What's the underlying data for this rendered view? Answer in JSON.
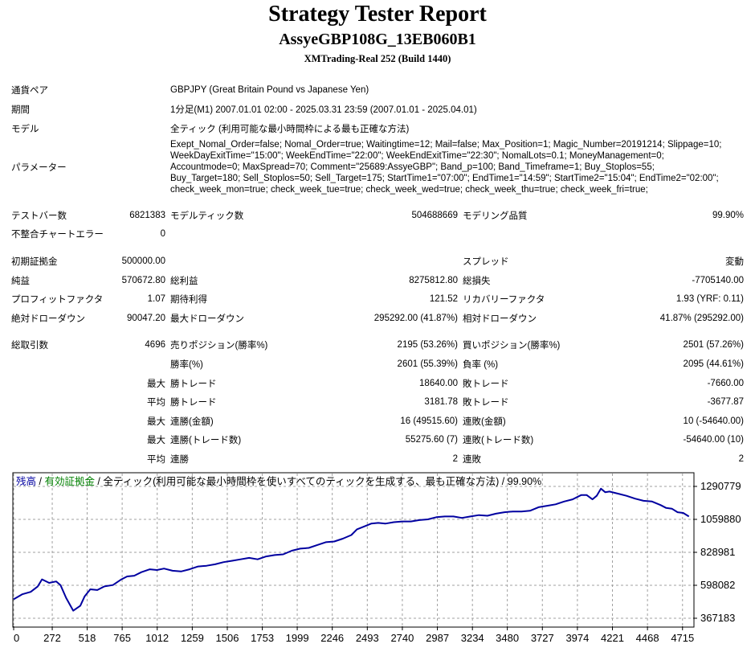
{
  "header": {
    "title": "Strategy Tester Report",
    "subtitle": "AssyeGBP108G_13EB060B1",
    "server": "XMTrading-Real 252 (Build 1440)"
  },
  "info": {
    "pair_label": "通貨ペア",
    "pair_value": "GBPJPY (Great Britain Pound vs Japanese Yen)",
    "period_label": "期間",
    "period_value": "1分足(M1) 2007.01.01 02:00 - 2025.03.31 23:59 (2007.01.01 - 2025.04.01)",
    "model_label": "モデル",
    "model_value": "全ティック (利用可能な最小時間枠による最も正確な方法)",
    "params_label": "パラメーター",
    "params_lines": [
      "Exept_Nomal_Order=false; Nomal_Order=true; Waitingtime=12; Mail=false; Max_Position=1; Magic_Number=20191214; Slippage=10;",
      "WeekDayExitTime=\"15:00\"; WeekEndTime=\"22:00\"; WeekEndExitTime=\"22:30\"; NomalLots=0.1; MoneyManagement=0;",
      "Accountmode=0; MaxSpread=70; Comment=\"25689:AssyeGBP\"; Band_p=100; Band_Timeframe=1; Buy_Stoplos=55;",
      "Buy_Target=180; Sell_Stoplos=50; Sell_Target=175; StartTime1=\"07:00\"; EndTime1=\"14:59\"; StartTime2=\"15:04\"; EndTime2=\"02:00\";",
      "check_week_mon=true; check_week_tue=true; check_week_wed=true; check_week_thu=true; check_week_fri=true;"
    ]
  },
  "stats": {
    "bars_label": "テストバー数",
    "bars_value": "6821383",
    "ticks_label": "モデルティック数",
    "ticks_value": "504688669",
    "quality_label": "モデリング品質",
    "quality_value": "99.90%",
    "mismatch_label": "不整合チャートエラー",
    "mismatch_value": "0",
    "deposit_label": "初期証拠金",
    "deposit_value": "500000.00",
    "spread_label": "スプレッド",
    "spread_value": "変動",
    "net_label": "純益",
    "net_value": "570672.80",
    "gross_profit_label": "総利益",
    "gross_profit_value": "8275812.80",
    "gross_loss_label": "総損失",
    "gross_loss_value": "-7705140.00",
    "pf_label": "プロフィットファクタ",
    "pf_value": "1.07",
    "expected_label": "期待利得",
    "expected_value": "121.52",
    "recovery_label": "リカバリーファクタ",
    "recovery_value": "1.93 (YRF: 0.11)",
    "abs_dd_label": "絶対ドローダウン",
    "abs_dd_value": "90047.20",
    "max_dd_label": "最大ドローダウン",
    "max_dd_value": "295292.00 (41.87%)",
    "rel_dd_label": "相対ドローダウン",
    "rel_dd_value": "41.87% (295292.00)",
    "total_trades_label": "総取引数",
    "total_trades_value": "4696",
    "short_label": "売りポジション(勝率%)",
    "short_value": "2195 (53.26%)",
    "long_label": "買いポジション(勝率%)",
    "long_value": "2501 (57.26%)",
    "win_rate_label": "勝率(%)",
    "win_rate_value": "2601 (55.39%)",
    "loss_rate_label": "負率 (%)",
    "loss_rate_value": "2095 (44.61%)",
    "max_label": "最大",
    "avg_label": "平均",
    "largest_win_label": "勝トレード",
    "largest_win_value": "18640.00",
    "largest_loss_label": "敗トレード",
    "largest_loss_value": "-7660.00",
    "avg_win_label": "勝トレード",
    "avg_win_value": "3181.78",
    "avg_loss_label": "敗トレード",
    "avg_loss_value": "-3677.87",
    "max_cons_wins_amt_label": "連勝(金額)",
    "max_cons_wins_amt_value": "16 (49515.60)",
    "max_cons_losses_amt_label": "連敗(金額)",
    "max_cons_losses_amt_value": "10 (-54640.00)",
    "max_cons_profit_label": "連勝(トレード数)",
    "max_cons_profit_value": "55275.60 (7)",
    "max_cons_loss_label": "連敗(トレード数)",
    "max_cons_loss_value": "-54640.00 (10)",
    "avg_cons_wins_label": "連勝",
    "avg_cons_wins_value": "2",
    "avg_cons_losses_label": "連敗",
    "avg_cons_losses_value": "2"
  },
  "chart_data": {
    "type": "line",
    "legend": {
      "balance": "残高",
      "sep1": " / ",
      "equity": "有効証拠金",
      "sep2": " / ",
      "rest": "全ティック(利用可能な最小時間枠を使いすべてのティックを生成する、最も正確な方法) / 99.90%"
    },
    "colors": {
      "balance": "#0000a0",
      "equity": "#008000",
      "line": "#0000a0",
      "grid": "#a0a0a0"
    },
    "grid": true,
    "ylim": [
      367183,
      1290779
    ],
    "y_ticks": [
      "1290779",
      "1059880",
      "828981",
      "598082",
      "367183"
    ],
    "x_ticks": [
      "0",
      "272",
      "518",
      "765",
      "1012",
      "1259",
      "1506",
      "1753",
      "1999",
      "2246",
      "2493",
      "2740",
      "2987",
      "3234",
      "3480",
      "3727",
      "3974",
      "4221",
      "4468",
      "4715"
    ],
    "x_tick_values": [
      0,
      272,
      518,
      765,
      1012,
      1259,
      1506,
      1753,
      1999,
      2246,
      2493,
      2740,
      2987,
      3234,
      3480,
      3727,
      3974,
      4221,
      4468,
      4715
    ],
    "series": [
      {
        "x": [
          0,
          60,
          120,
          170,
          200,
          250,
          300,
          330,
          370,
          420,
          470,
          500,
          540,
          590,
          640,
          700,
          760,
          800,
          850,
          900,
          960,
          1010,
          1060,
          1120,
          1180,
          1240,
          1300,
          1360,
          1420,
          1480,
          1540,
          1600,
          1660,
          1720,
          1780,
          1840,
          1900,
          1960,
          2020,
          2080,
          2140,
          2200,
          2260,
          2320,
          2380,
          2420,
          2470,
          2520,
          2570,
          2620,
          2680,
          2740,
          2800,
          2860,
          2920,
          2980,
          3040,
          3100,
          3160,
          3220,
          3280,
          3340,
          3400,
          3460,
          3520,
          3580,
          3640,
          3700,
          3760,
          3820,
          3880,
          3940,
          4000,
          4040,
          4080,
          4110,
          4140,
          4170,
          4200,
          4260,
          4320,
          4380,
          4440,
          4500,
          4560,
          4600,
          4640,
          4680,
          4720,
          4760
        ],
        "y": [
          500000,
          535000,
          552000,
          590000,
          640000,
          615000,
          625000,
          600000,
          510000,
          420000,
          455000,
          520000,
          570000,
          565000,
          590000,
          600000,
          640000,
          660000,
          665000,
          690000,
          710000,
          705000,
          715000,
          700000,
          695000,
          710000,
          730000,
          735000,
          745000,
          760000,
          770000,
          780000,
          790000,
          780000,
          800000,
          810000,
          815000,
          840000,
          855000,
          860000,
          880000,
          900000,
          905000,
          925000,
          950000,
          990000,
          1010000,
          1030000,
          1035000,
          1030000,
          1040000,
          1045000,
          1045000,
          1055000,
          1060000,
          1075000,
          1080000,
          1080000,
          1070000,
          1080000,
          1090000,
          1085000,
          1100000,
          1110000,
          1115000,
          1115000,
          1120000,
          1145000,
          1155000,
          1165000,
          1185000,
          1200000,
          1230000,
          1230000,
          1200000,
          1225000,
          1275000,
          1250000,
          1255000,
          1240000,
          1225000,
          1205000,
          1190000,
          1185000,
          1160000,
          1140000,
          1135000,
          1110000,
          1105000,
          1080000
        ]
      }
    ]
  }
}
